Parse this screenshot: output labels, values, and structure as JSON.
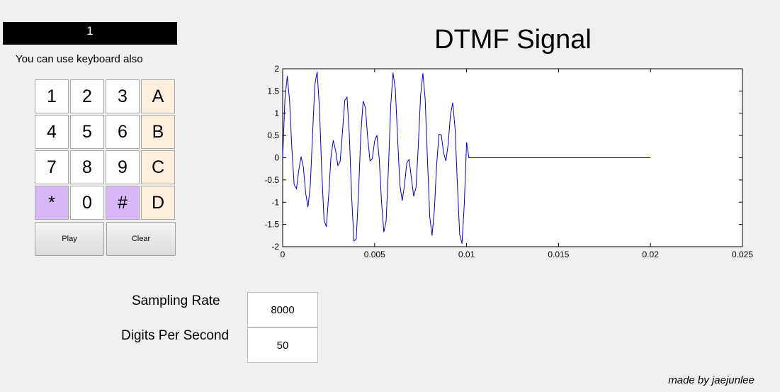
{
  "display": {
    "value": "1"
  },
  "hint": "You can use keyboard also",
  "keypad": {
    "rows": [
      [
        {
          "label": "1",
          "kind": "digit"
        },
        {
          "label": "2",
          "kind": "digit"
        },
        {
          "label": "3",
          "kind": "digit"
        },
        {
          "label": "A",
          "kind": "letter"
        }
      ],
      [
        {
          "label": "4",
          "kind": "digit"
        },
        {
          "label": "5",
          "kind": "digit"
        },
        {
          "label": "6",
          "kind": "digit"
        },
        {
          "label": "B",
          "kind": "letter"
        }
      ],
      [
        {
          "label": "7",
          "kind": "digit"
        },
        {
          "label": "8",
          "kind": "digit"
        },
        {
          "label": "9",
          "kind": "digit"
        },
        {
          "label": "C",
          "kind": "letter"
        }
      ],
      [
        {
          "label": "*",
          "kind": "sym"
        },
        {
          "label": "0",
          "kind": "digit"
        },
        {
          "label": "#",
          "kind": "sym"
        },
        {
          "label": "D",
          "kind": "letter"
        }
      ]
    ],
    "colors": {
      "digit": "#ffffff",
      "letter": "#fdefdc",
      "sym": "#d6b8f6"
    }
  },
  "buttons": {
    "play": "Play",
    "clear": "Clear"
  },
  "plot": {
    "title": "DTMF Signal",
    "line_color": "#0000cc"
  },
  "chart_data": {
    "type": "line",
    "title": "DTMF Signal",
    "xlabel": "",
    "ylabel": "",
    "xlim": [
      0,
      0.025
    ],
    "ylim": [
      -2,
      2
    ],
    "x_ticks": [
      0,
      0.005,
      0.01,
      0.015,
      0.02,
      0.025
    ],
    "x_tick_labels": [
      "0",
      "0.005",
      "0.01",
      "0.015",
      "0.02",
      "0.025"
    ],
    "y_ticks": [
      2,
      1.5,
      1,
      0.5,
      0,
      -0.5,
      -1,
      -1.5,
      -2
    ],
    "y_tick_labels": [
      "2",
      "1.5",
      "1",
      "0.5",
      "0",
      "-0.5",
      "-1",
      "-1.5",
      "-2"
    ],
    "grid": false,
    "series": [
      {
        "signal": "tone",
        "freqs_hz": [
          697,
          1209
        ],
        "sample_rate": 8000,
        "tone_end": 0.01,
        "end": 0.02
      }
    ]
  },
  "fields": {
    "sampling_rate": {
      "label": "Sampling Rate",
      "value": "8000"
    },
    "digits_per_second": {
      "label": "Digits Per Second",
      "value": "50"
    }
  },
  "credit": "made by jaejunlee"
}
